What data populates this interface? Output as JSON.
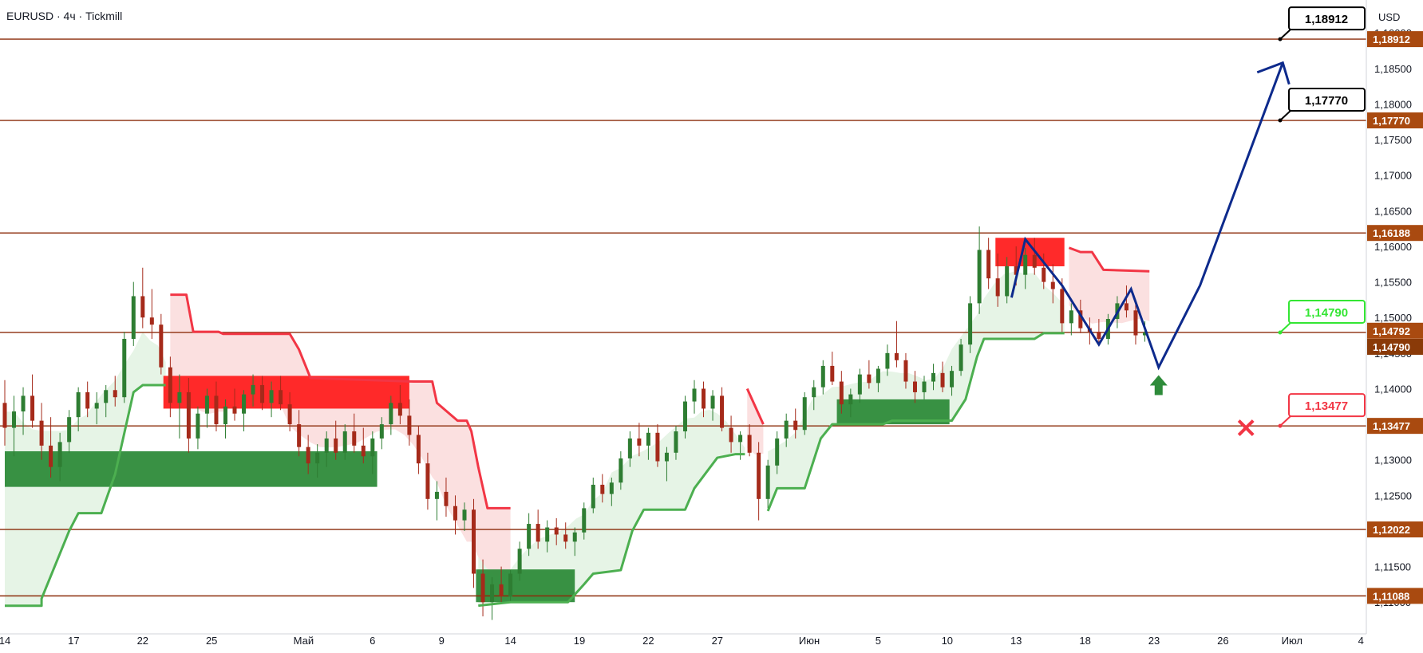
{
  "header": {
    "title": "EURUSD · 4ч · Tickmill"
  },
  "colors": {
    "level_line": "#8b2c0a",
    "badge_bg": "#a94a10",
    "bull_candle": "#2e7d32",
    "bear_candle": "#a52a1a",
    "supertrend_up": "#4caf50",
    "supertrend_down": "#f23645",
    "fill_up": "#e6f4e6",
    "fill_down": "#fbe0e0",
    "zone_red": "#ff1f1f",
    "zone_green": "#2e8b3a",
    "path_blue": "#0d2a8c",
    "callout_green": "#33e633",
    "callout_red": "#f23645",
    "callout_black": "#000000"
  },
  "chart_data": {
    "type": "candlestick",
    "symbol": "EURUSD",
    "timeframe": "4ч",
    "broker": "Tickmill",
    "currency": "USD",
    "ylim": [
      1.107,
      1.1935
    ],
    "y_ticks": [
      1.11,
      1.115,
      1.12,
      1.125,
      1.13,
      1.135,
      1.14,
      1.145,
      1.15,
      1.155,
      1.16,
      1.165,
      1.17,
      1.175,
      1.18,
      1.185,
      1.19
    ],
    "y_tick_labels": [
      "1,11000",
      "1,11500",
      "1,12000",
      "1,12500",
      "1,13000",
      "1,13500",
      "1,14000",
      "1,14500",
      "1,15000",
      "1,15500",
      "1,16000",
      "1,16500",
      "1,17000",
      "1,17500",
      "1,18000",
      "1,18500",
      "1,19000"
    ],
    "x_ticks": [
      {
        "day": 0,
        "label": "14"
      },
      {
        "day": 3,
        "label": "17"
      },
      {
        "day": 6,
        "label": "22"
      },
      {
        "day": 9,
        "label": "25"
      },
      {
        "day": 13,
        "label": "Май"
      },
      {
        "day": 16,
        "label": "6"
      },
      {
        "day": 19,
        "label": "9"
      },
      {
        "day": 22,
        "label": "14"
      },
      {
        "day": 25,
        "label": "19"
      },
      {
        "day": 28,
        "label": "22"
      },
      {
        "day": 31,
        "label": "27"
      },
      {
        "day": 35,
        "label": "Июн"
      },
      {
        "day": 38,
        "label": "5"
      },
      {
        "day": 41,
        "label": "10"
      },
      {
        "day": 44,
        "label": "13"
      },
      {
        "day": 47,
        "label": "18"
      },
      {
        "day": 50,
        "label": "23"
      },
      {
        "day": 53,
        "label": "26"
      },
      {
        "day": 56,
        "label": "Июл"
      },
      {
        "day": 59,
        "label": "4"
      }
    ],
    "horizontal_levels": [
      {
        "value": 1.18912,
        "label": "1,18912"
      },
      {
        "value": 1.1777,
        "label": "1,17770"
      },
      {
        "value": 1.16188,
        "label": "1,16188"
      },
      {
        "value": 1.1479,
        "label": "1,14790"
      },
      {
        "value": 1.13477,
        "label": "1,13477"
      },
      {
        "value": 1.12022,
        "label": "1,12022"
      },
      {
        "value": 1.11088,
        "label": "1,11088"
      }
    ],
    "current_price": {
      "value": 1.14792,
      "label": "1,14792"
    },
    "current_price_level_badge": {
      "value": 1.1479,
      "label": "1,14790"
    },
    "callouts": [
      {
        "value": 1.18912,
        "label": "1,18912",
        "kind": "target"
      },
      {
        "value": 1.1777,
        "label": "1,17770",
        "kind": "target"
      },
      {
        "value": 1.1479,
        "label": "1,14790",
        "kind": "entry"
      },
      {
        "value": 1.13477,
        "label": "1,13477",
        "kind": "stop"
      }
    ],
    "zones": [
      {
        "kind": "supply",
        "x0": 6.9,
        "x1": 17.6,
        "y0": 1.1372,
        "y1": 1.1418
      },
      {
        "kind": "demand",
        "x0": 0,
        "x1": 16.2,
        "y0": 1.1262,
        "y1": 1.1312
      },
      {
        "kind": "demand",
        "x0": 20.5,
        "x1": 24.8,
        "y0": 1.11,
        "y1": 1.1146
      },
      {
        "kind": "demand",
        "x0": 36.2,
        "x1": 41.1,
        "y0": 1.135,
        "y1": 1.1385
      },
      {
        "kind": "supply",
        "x0": 43.1,
        "x1": 46.1,
        "y0": 1.1572,
        "y1": 1.1612
      }
    ],
    "supertrend_up": [
      [
        0,
        1.1095
      ],
      [
        1.6,
        1.1095
      ],
      [
        1.6,
        1.1105
      ],
      [
        2.8,
        1.12
      ],
      [
        3.2,
        1.1225
      ],
      [
        4.2,
        1.1225
      ],
      [
        4.8,
        1.128
      ],
      [
        5.6,
        1.1395
      ],
      [
        6.0,
        1.1405
      ],
      [
        7.0,
        1.1405
      ]
    ],
    "supertrend_up_2": [
      [
        20.6,
        1.1095
      ],
      [
        22.0,
        1.11
      ],
      [
        24.5,
        1.11
      ],
      [
        25.2,
        1.1125
      ],
      [
        25.6,
        1.114
      ],
      [
        26.8,
        1.1145
      ],
      [
        27.3,
        1.12
      ],
      [
        27.8,
        1.123
      ],
      [
        29.6,
        1.123
      ],
      [
        30.0,
        1.126
      ],
      [
        31.0,
        1.1303
      ],
      [
        31.8,
        1.1308
      ],
      [
        32.2,
        1.1308
      ]
    ],
    "supertrend_up_3": [
      [
        33.2,
        1.1228
      ],
      [
        33.6,
        1.126
      ],
      [
        34.8,
        1.126
      ],
      [
        35.2,
        1.13
      ],
      [
        35.5,
        1.133
      ],
      [
        36.0,
        1.135
      ],
      [
        37.2,
        1.135
      ],
      [
        38.2,
        1.135
      ],
      [
        38.6,
        1.1355
      ],
      [
        41.2,
        1.1355
      ],
      [
        41.8,
        1.1385
      ],
      [
        42.3,
        1.1445
      ],
      [
        42.6,
        1.147
      ],
      [
        44.8,
        1.147
      ],
      [
        45.2,
        1.1478
      ],
      [
        46.1,
        1.1478
      ]
    ],
    "supertrend_down": [
      [
        7.2,
        1.1532
      ],
      [
        7.9,
        1.1532
      ],
      [
        8.2,
        1.148
      ],
      [
        9.3,
        1.148
      ],
      [
        9.5,
        1.1477
      ],
      [
        12.4,
        1.1477
      ],
      [
        12.8,
        1.1455
      ],
      [
        13.3,
        1.1415
      ],
      [
        17.8,
        1.141
      ],
      [
        18.6,
        1.141
      ],
      [
        18.8,
        1.138
      ],
      [
        19.7,
        1.1355
      ],
      [
        20.1,
        1.1355
      ],
      [
        20.3,
        1.134
      ],
      [
        20.6,
        1.129
      ],
      [
        21.0,
        1.1232
      ],
      [
        22.0,
        1.1232
      ]
    ],
    "supertrend_down_2": [
      [
        32.3,
        1.14
      ],
      [
        33.0,
        1.135
      ]
    ],
    "supertrend_down_3": [
      [
        46.3,
        1.1598
      ],
      [
        46.8,
        1.1592
      ],
      [
        47.3,
        1.1592
      ],
      [
        47.8,
        1.1567
      ],
      [
        49.8,
        1.1565
      ]
    ],
    "candles_ohlc": [
      [
        0.0,
        1.138,
        1.1412,
        1.132,
        1.1345
      ],
      [
        0.4,
        1.1345,
        1.139,
        1.1305,
        1.1368
      ],
      [
        0.8,
        1.1368,
        1.1402,
        1.1335,
        1.139
      ],
      [
        1.2,
        1.139,
        1.142,
        1.1345,
        1.1355
      ],
      [
        1.6,
        1.1355,
        1.138,
        1.13,
        1.132
      ],
      [
        2.0,
        1.132,
        1.136,
        1.1275,
        1.129
      ],
      [
        2.4,
        1.129,
        1.1338,
        1.127,
        1.1325
      ],
      [
        2.8,
        1.1325,
        1.137,
        1.131,
        1.136
      ],
      [
        3.2,
        1.136,
        1.1402,
        1.134,
        1.1395
      ],
      [
        3.6,
        1.1395,
        1.141,
        1.136,
        1.1372
      ],
      [
        4.0,
        1.1372,
        1.1395,
        1.135,
        1.138
      ],
      [
        4.4,
        1.138,
        1.1405,
        1.136,
        1.1398
      ],
      [
        4.8,
        1.1398,
        1.1418,
        1.1375,
        1.1388
      ],
      [
        5.2,
        1.1388,
        1.148,
        1.138,
        1.147
      ],
      [
        5.6,
        1.147,
        1.155,
        1.146,
        1.153
      ],
      [
        6.0,
        1.153,
        1.157,
        1.1485,
        1.15
      ],
      [
        6.4,
        1.15,
        1.154,
        1.147,
        1.149
      ],
      [
        6.8,
        1.149,
        1.1505,
        1.142,
        1.143
      ],
      [
        7.2,
        1.143,
        1.1445,
        1.136,
        1.138
      ],
      [
        7.6,
        1.138,
        1.142,
        1.133,
        1.1395
      ],
      [
        8.0,
        1.1395,
        1.1415,
        1.131,
        1.133
      ],
      [
        8.4,
        1.133,
        1.1375,
        1.1315,
        1.1365
      ],
      [
        8.8,
        1.1365,
        1.14,
        1.1345,
        1.139
      ],
      [
        9.2,
        1.139,
        1.141,
        1.134,
        1.135
      ],
      [
        9.6,
        1.135,
        1.1385,
        1.133,
        1.1375
      ],
      [
        10.0,
        1.1375,
        1.14,
        1.1355,
        1.1365
      ],
      [
        10.4,
        1.1365,
        1.1398,
        1.134,
        1.1392
      ],
      [
        10.8,
        1.1392,
        1.142,
        1.1375,
        1.1405
      ],
      [
        11.2,
        1.1405,
        1.1418,
        1.137,
        1.138
      ],
      [
        11.6,
        1.138,
        1.141,
        1.136,
        1.1398
      ],
      [
        12.0,
        1.1398,
        1.1418,
        1.137,
        1.1378
      ],
      [
        12.4,
        1.1378,
        1.1395,
        1.134,
        1.135
      ],
      [
        12.8,
        1.135,
        1.137,
        1.1305,
        1.1318
      ],
      [
        13.2,
        1.1318,
        1.1335,
        1.128,
        1.1295
      ],
      [
        13.6,
        1.1295,
        1.1322,
        1.1275,
        1.131
      ],
      [
        14.0,
        1.131,
        1.134,
        1.129,
        1.133
      ],
      [
        14.4,
        1.133,
        1.1355,
        1.13,
        1.131
      ],
      [
        14.8,
        1.131,
        1.135,
        1.13,
        1.134
      ],
      [
        15.2,
        1.134,
        1.1365,
        1.131,
        1.132
      ],
      [
        15.6,
        1.132,
        1.1345,
        1.1295,
        1.1305
      ],
      [
        16.0,
        1.1305,
        1.134,
        1.128,
        1.133
      ],
      [
        16.4,
        1.133,
        1.136,
        1.1315,
        1.135
      ],
      [
        16.8,
        1.135,
        1.139,
        1.1335,
        1.138
      ],
      [
        17.2,
        1.138,
        1.1405,
        1.135,
        1.1362
      ],
      [
        17.6,
        1.1362,
        1.1385,
        1.132,
        1.1335
      ],
      [
        18.0,
        1.1335,
        1.1348,
        1.128,
        1.1295
      ],
      [
        18.4,
        1.1295,
        1.131,
        1.123,
        1.1245
      ],
      [
        18.8,
        1.1245,
        1.127,
        1.1215,
        1.1255
      ],
      [
        19.2,
        1.1255,
        1.1275,
        1.122,
        1.1235
      ],
      [
        19.6,
        1.1235,
        1.125,
        1.1195,
        1.1215
      ],
      [
        20.0,
        1.1215,
        1.124,
        1.12,
        1.123
      ],
      [
        20.4,
        1.123,
        1.1245,
        1.112,
        1.114
      ],
      [
        20.8,
        1.114,
        1.116,
        1.108,
        1.11
      ],
      [
        21.2,
        1.11,
        1.1135,
        1.1075,
        1.1125
      ],
      [
        21.6,
        1.1125,
        1.115,
        1.1098,
        1.1108
      ],
      [
        22.0,
        1.1108,
        1.1145,
        1.11,
        1.114
      ],
      [
        22.4,
        1.114,
        1.1185,
        1.113,
        1.1175
      ],
      [
        22.8,
        1.1175,
        1.1225,
        1.1165,
        1.121
      ],
      [
        23.2,
        1.121,
        1.123,
        1.1175,
        1.1185
      ],
      [
        23.6,
        1.1185,
        1.1215,
        1.117,
        1.1205
      ],
      [
        24.0,
        1.1205,
        1.1218,
        1.118,
        1.1195
      ],
      [
        24.4,
        1.1195,
        1.1212,
        1.1175,
        1.1185
      ],
      [
        24.8,
        1.1185,
        1.1205,
        1.1165,
        1.1198
      ],
      [
        25.2,
        1.1198,
        1.124,
        1.1188,
        1.1232
      ],
      [
        25.6,
        1.1232,
        1.1275,
        1.1225,
        1.1265
      ],
      [
        26.0,
        1.1265,
        1.128,
        1.124,
        1.1252
      ],
      [
        26.4,
        1.1252,
        1.1275,
        1.1235,
        1.1268
      ],
      [
        26.8,
        1.1268,
        1.1312,
        1.1258,
        1.1302
      ],
      [
        27.2,
        1.1302,
        1.134,
        1.129,
        1.133
      ],
      [
        27.6,
        1.133,
        1.1352,
        1.1305,
        1.132
      ],
      [
        28.0,
        1.132,
        1.1345,
        1.13,
        1.1338
      ],
      [
        28.4,
        1.1338,
        1.135,
        1.129,
        1.1298
      ],
      [
        28.8,
        1.1298,
        1.1318,
        1.127,
        1.131
      ],
      [
        29.2,
        1.131,
        1.1348,
        1.13,
        1.134
      ],
      [
        29.6,
        1.134,
        1.139,
        1.133,
        1.1382
      ],
      [
        30.0,
        1.1382,
        1.1412,
        1.1365,
        1.14
      ],
      [
        30.4,
        1.14,
        1.141,
        1.136,
        1.1372
      ],
      [
        30.8,
        1.1372,
        1.1398,
        1.1355,
        1.139
      ],
      [
        31.2,
        1.139,
        1.1402,
        1.134,
        1.1345
      ],
      [
        31.6,
        1.1345,
        1.1362,
        1.131,
        1.1325
      ],
      [
        32.0,
        1.1325,
        1.134,
        1.13,
        1.1335
      ],
      [
        32.4,
        1.1335,
        1.135,
        1.1305,
        1.131
      ],
      [
        32.8,
        1.131,
        1.1325,
        1.1215,
        1.1245
      ],
      [
        33.2,
        1.1245,
        1.13,
        1.1232,
        1.1292
      ],
      [
        33.6,
        1.1292,
        1.134,
        1.128,
        1.133
      ],
      [
        34.0,
        1.133,
        1.1365,
        1.1318,
        1.1355
      ],
      [
        34.4,
        1.1355,
        1.1372,
        1.133,
        1.1342
      ],
      [
        34.8,
        1.1342,
        1.1395,
        1.1335,
        1.1388
      ],
      [
        35.2,
        1.1388,
        1.1412,
        1.137,
        1.1402
      ],
      [
        35.6,
        1.1402,
        1.144,
        1.1392,
        1.1432
      ],
      [
        36.0,
        1.1432,
        1.1452,
        1.1405,
        1.141
      ],
      [
        36.4,
        1.141,
        1.1425,
        1.1365,
        1.1378
      ],
      [
        36.8,
        1.1378,
        1.14,
        1.136,
        1.1392
      ],
      [
        37.2,
        1.1392,
        1.1428,
        1.138,
        1.142
      ],
      [
        37.6,
        1.142,
        1.144,
        1.14,
        1.1408
      ],
      [
        38.0,
        1.1408,
        1.1432,
        1.1395,
        1.1428
      ],
      [
        38.4,
        1.1428,
        1.1462,
        1.1418,
        1.145
      ],
      [
        38.8,
        1.145,
        1.1495,
        1.143,
        1.144
      ],
      [
        39.2,
        1.144,
        1.145,
        1.14,
        1.141
      ],
      [
        39.6,
        1.141,
        1.1425,
        1.138,
        1.1395
      ],
      [
        40.0,
        1.1395,
        1.1418,
        1.1385,
        1.141
      ],
      [
        40.4,
        1.141,
        1.1435,
        1.1398,
        1.1422
      ],
      [
        40.8,
        1.1422,
        1.1438,
        1.1395,
        1.1402
      ],
      [
        41.2,
        1.1402,
        1.1432,
        1.139,
        1.1425
      ],
      [
        41.6,
        1.1425,
        1.147,
        1.1418,
        1.1462
      ],
      [
        42.0,
        1.1462,
        1.153,
        1.145,
        1.152
      ],
      [
        42.4,
        1.152,
        1.1628,
        1.1505,
        1.1595
      ],
      [
        42.8,
        1.1595,
        1.1612,
        1.154,
        1.1555
      ],
      [
        43.2,
        1.1555,
        1.159,
        1.1515,
        1.153
      ],
      [
        43.6,
        1.153,
        1.1585,
        1.152,
        1.1572
      ],
      [
        44.0,
        1.1572,
        1.16,
        1.1545,
        1.156
      ],
      [
        44.4,
        1.156,
        1.1598,
        1.154,
        1.1588
      ],
      [
        44.8,
        1.1588,
        1.1612,
        1.156,
        1.157
      ],
      [
        45.2,
        1.157,
        1.159,
        1.154,
        1.155
      ],
      [
        45.6,
        1.155,
        1.1575,
        1.152,
        1.154
      ],
      [
        46.0,
        1.154,
        1.1555,
        1.1478,
        1.1492
      ],
      [
        46.4,
        1.1492,
        1.152,
        1.1475,
        1.151
      ],
      [
        46.8,
        1.151,
        1.1525,
        1.1478,
        1.1485
      ],
      [
        47.2,
        1.1485,
        1.15,
        1.1462,
        1.148
      ],
      [
        47.6,
        1.148,
        1.1498,
        1.146,
        1.147
      ],
      [
        48.0,
        1.147,
        1.1505,
        1.1462,
        1.1498
      ],
      [
        48.4,
        1.1498,
        1.153,
        1.1485,
        1.152
      ],
      [
        48.8,
        1.152,
        1.1545,
        1.15,
        1.151
      ],
      [
        49.2,
        1.151,
        1.1525,
        1.1462,
        1.1475
      ],
      [
        49.6,
        1.1475,
        1.1495,
        1.1466,
        1.1479
      ]
    ],
    "projection_path": [
      [
        43.8,
        1.1528
      ],
      [
        44.4,
        1.161
      ],
      [
        46.0,
        1.1545
      ],
      [
        47.6,
        1.1462
      ],
      [
        49.0,
        1.154
      ],
      [
        50.2,
        1.143
      ],
      [
        52.0,
        1.1545
      ],
      [
        55.6,
        1.1858
      ]
    ],
    "projection_arrow_tip": [
      55.6,
      1.1858
    ],
    "buy_arrow": [
      50.2,
      1.14
    ],
    "stop_mark": [
      54.0,
      1.1345
    ]
  }
}
